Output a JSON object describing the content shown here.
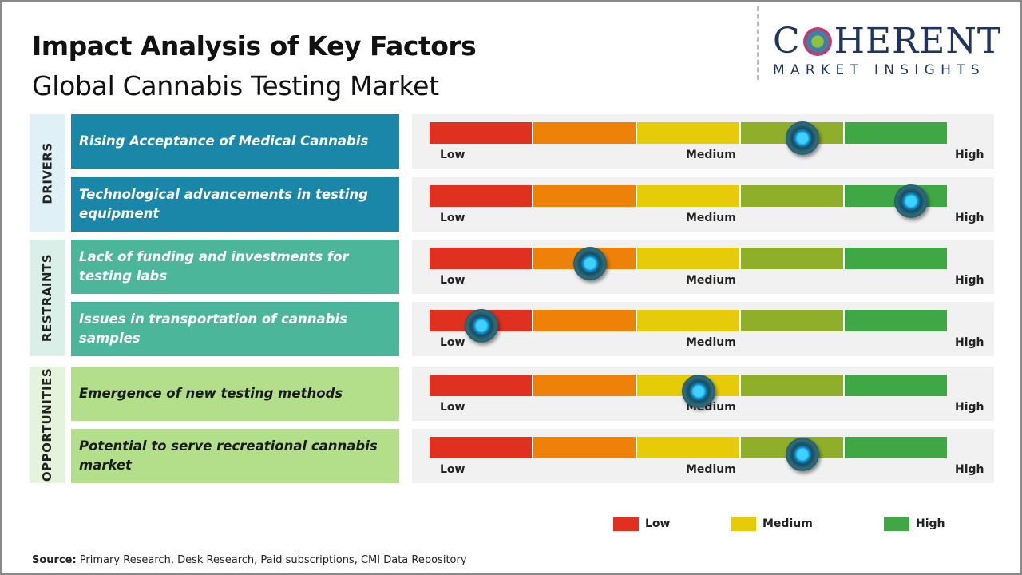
{
  "title": "Impact Analysis of Key Factors",
  "subtitle": "Global Cannabis Testing Market",
  "logo": {
    "line1": "COHERENT",
    "line2": "MARKET INSIGHTS"
  },
  "colors": {
    "segments": [
      "#e03020",
      "#ee8208",
      "#e6cb08",
      "#8fae2a",
      "#3fa845"
    ],
    "knob": "#1fb4ee"
  },
  "chart_data": {
    "type": "gauge-scale",
    "scale_labels": {
      "low": "Low",
      "medium": "Medium",
      "high": "High"
    },
    "scale_range": [
      0,
      1
    ],
    "groups": [
      {
        "name": "DRIVERS",
        "color": "#1a87a8",
        "band": "#dff0f7",
        "text_color": "#ffffff",
        "factors": [
          {
            "label": "Rising Acceptance of Medical Cannabis",
            "impact": 0.72
          },
          {
            "label": "Technological advancements in testing equipment",
            "impact": 0.93
          }
        ]
      },
      {
        "name": "RESTRAINTS",
        "color": "#4cb69a",
        "band": "#d9efe8",
        "text_color": "#ffffff",
        "factors": [
          {
            "label": "Lack of funding and investments for testing labs",
            "impact": 0.31
          },
          {
            "label": "Issues in transportation of cannabis samples",
            "impact": 0.1
          }
        ]
      },
      {
        "name": "OPPORTUNITIES",
        "color": "#b3df8a",
        "band": "#e6f3dc",
        "text_color": "#1a1a1a",
        "factors": [
          {
            "label": "Emergence of new testing methods",
            "impact": 0.52
          },
          {
            "label": "Potential to serve recreational cannabis market",
            "impact": 0.72
          }
        ]
      }
    ],
    "legend": [
      {
        "label": "Low",
        "color": "#e03020"
      },
      {
        "label": "Medium",
        "color": "#e6cb08"
      },
      {
        "label": "High",
        "color": "#3fa845"
      }
    ]
  },
  "source": {
    "label": "Source:",
    "text": " Primary Research, Desk Research, Paid subscriptions, CMI Data Repository"
  }
}
